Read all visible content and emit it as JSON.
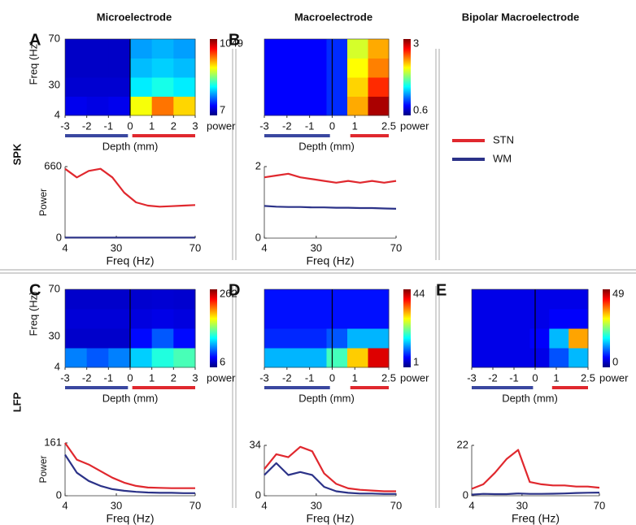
{
  "headers": [
    "Microelectrode",
    "Macroelectrode",
    "Bipolar Macroelectrode"
  ],
  "rows": [
    "SPK",
    "LFP"
  ],
  "legend": [
    {
      "name": "STN",
      "color": "#e0282e"
    },
    {
      "name": "WM",
      "color": "#2b3288"
    }
  ],
  "chart_data": [
    {
      "type": "heatmap",
      "panel": "A",
      "ylabel": "Freq (Hz)",
      "xlabel": "Depth (mm)",
      "colorbar_label": "power",
      "xlim": [
        -3,
        3
      ],
      "xticks": [
        -3,
        -2,
        -1,
        0,
        1,
        2,
        3
      ],
      "ylim": [
        4,
        70
      ],
      "yticks": [
        4,
        30,
        70
      ],
      "zlim": [
        7,
        1049
      ],
      "zticks": [
        7,
        1049
      ],
      "boundary": 0,
      "depth_bars": [
        {
          "range": [
            -3,
            -0.1
          ],
          "color": "#3a47a0"
        },
        {
          "range": [
            0.1,
            3
          ],
          "color": "#e0282e"
        }
      ],
      "z": [
        [
          120,
          110,
          120,
          650,
          800,
          700
        ],
        [
          90,
          90,
          90,
          380,
          420,
          380
        ],
        [
          80,
          80,
          80,
          330,
          350,
          330
        ],
        [
          80,
          80,
          80,
          300,
          320,
          300
        ]
      ]
    },
    {
      "type": "line",
      "xlabel": "Freq (Hz)",
      "ylabel": "Power",
      "x": [
        4,
        10,
        16,
        22,
        28,
        34,
        40,
        46,
        52,
        58,
        64,
        70
      ],
      "xlim": [
        4,
        70
      ],
      "xticks": [
        4,
        30,
        70
      ],
      "ylim": [
        0,
        660
      ],
      "yticks": [
        0,
        660
      ],
      "series": [
        {
          "color": "#e0282e",
          "values": [
            640,
            560,
            620,
            640,
            560,
            420,
            330,
            300,
            290,
            295,
            300,
            305
          ]
        },
        {
          "color": "#2b3288",
          "values": [
            5,
            5,
            5,
            5,
            5,
            5,
            5,
            5,
            5,
            5,
            5,
            5
          ]
        }
      ]
    },
    {
      "type": "heatmap",
      "panel": "B",
      "xlabel": "Depth (mm)",
      "colorbar_label": "power",
      "xlim": [
        -3,
        2.5
      ],
      "xticks": [
        -3,
        -2,
        -1,
        0,
        1,
        2.5
      ],
      "ylim": [
        4,
        70
      ],
      "yticks": [],
      "zlim": [
        0.6,
        3
      ],
      "zticks": [
        0.6,
        3
      ],
      "boundary": 0,
      "depth_bars": [
        {
          "range": [
            -3,
            -0.1
          ],
          "color": "#3a47a0"
        },
        {
          "range": [
            0.8,
            2.5
          ],
          "color": "#e0282e"
        }
      ],
      "z": [
        [
          0.9,
          0.9,
          0.9,
          1.0,
          2.3,
          2.9
        ],
        [
          0.9,
          0.9,
          0.9,
          1.0,
          2.2,
          2.6
        ],
        [
          0.9,
          0.9,
          0.9,
          1.0,
          2.1,
          2.4
        ],
        [
          0.9,
          0.9,
          0.9,
          1.0,
          2.0,
          2.3
        ]
      ]
    },
    {
      "type": "line",
      "xlabel": "Freq (Hz)",
      "x": [
        4,
        10,
        16,
        22,
        28,
        34,
        40,
        46,
        52,
        58,
        64,
        70
      ],
      "xlim": [
        4,
        70
      ],
      "xticks": [
        4,
        30,
        70
      ],
      "ylim": [
        0,
        2
      ],
      "yticks": [
        0,
        2
      ],
      "series": [
        {
          "color": "#e0282e",
          "values": [
            1.7,
            1.75,
            1.8,
            1.7,
            1.65,
            1.6,
            1.55,
            1.6,
            1.55,
            1.6,
            1.55,
            1.6
          ]
        },
        {
          "color": "#2b3288",
          "values": [
            0.9,
            0.88,
            0.87,
            0.87,
            0.86,
            0.86,
            0.85,
            0.85,
            0.84,
            0.84,
            0.83,
            0.82
          ]
        }
      ]
    },
    {
      "type": "heatmap",
      "panel": "C",
      "ylabel": "Freq (Hz)",
      "xlabel": "Depth (mm)",
      "colorbar_label": "power",
      "xlim": [
        -3,
        3
      ],
      "xticks": [
        -3,
        -2,
        -1,
        0,
        1,
        2,
        3
      ],
      "ylim": [
        4,
        70
      ],
      "yticks": [
        4,
        30,
        70
      ],
      "zlim": [
        6,
        262
      ],
      "zticks": [
        6,
        262
      ],
      "boundary": 0,
      "depth_bars": [
        {
          "range": [
            -3,
            -0.1
          ],
          "color": "#3a47a0"
        },
        {
          "range": [
            0.1,
            3
          ],
          "color": "#e0282e"
        }
      ],
      "z": [
        [
          70,
          60,
          70,
          90,
          110,
          120
        ],
        [
          25,
          25,
          25,
          40,
          60,
          40
        ],
        [
          28,
          28,
          28,
          30,
          32,
          30
        ],
        [
          25,
          25,
          25,
          26,
          27,
          26
        ]
      ]
    },
    {
      "type": "line",
      "xlabel": "Freq (Hz)",
      "ylabel": "Power",
      "x": [
        4,
        10,
        16,
        22,
        28,
        34,
        40,
        46,
        52,
        58,
        64,
        70
      ],
      "xlim": [
        4,
        70
      ],
      "xticks": [
        4,
        30,
        70
      ],
      "ylim": [
        0,
        161
      ],
      "yticks": [
        0,
        161
      ],
      "series": [
        {
          "color": "#e0282e",
          "values": [
            161,
            110,
            95,
            75,
            55,
            40,
            30,
            25,
            24,
            23,
            23,
            23
          ]
        },
        {
          "color": "#2b3288",
          "values": [
            125,
            70,
            45,
            30,
            20,
            15,
            12,
            10,
            9,
            9,
            8,
            8
          ]
        }
      ]
    },
    {
      "type": "heatmap",
      "panel": "D",
      "xlabel": "Depth (mm)",
      "colorbar_label": "power",
      "xlim": [
        -3,
        2.5
      ],
      "xticks": [
        -3,
        -2,
        -1,
        0,
        1,
        2.5
      ],
      "ylim": [
        4,
        70
      ],
      "yticks": [],
      "zlim": [
        1,
        44
      ],
      "zticks": [
        1,
        44
      ],
      "boundary": 0,
      "depth_bars": [
        {
          "range": [
            -3,
            -0.1
          ],
          "color": "#3a47a0"
        },
        {
          "range": [
            0.8,
            2.5
          ],
          "color": "#e0282e"
        }
      ],
      "z": [
        [
          14,
          14,
          14,
          20,
          30,
          40
        ],
        [
          8,
          8,
          8,
          10,
          14,
          14
        ],
        [
          7,
          7,
          7,
          7,
          7,
          7
        ],
        [
          7,
          7,
          7,
          7,
          7,
          7
        ]
      ]
    },
    {
      "type": "line",
      "xlabel": "Freq (Hz)",
      "x": [
        4,
        10,
        16,
        22,
        28,
        34,
        40,
        46,
        52,
        58,
        64,
        70
      ],
      "xlim": [
        4,
        70
      ],
      "xticks": [
        4,
        30,
        70
      ],
      "ylim": [
        0,
        34
      ],
      "yticks": [
        0,
        34
      ],
      "series": [
        {
          "color": "#e0282e",
          "values": [
            18,
            28,
            26,
            33,
            30,
            15,
            8,
            5,
            4,
            3.5,
            3,
            3
          ]
        },
        {
          "color": "#2b3288",
          "values": [
            14,
            22,
            14,
            16,
            14,
            6,
            3,
            2,
            1.5,
            1.5,
            1.2,
            1.2
          ]
        }
      ]
    },
    {
      "type": "heatmap",
      "panel": "E",
      "xlabel": "Depth (mm)",
      "colorbar_label": "power",
      "xlim": [
        -3,
        2.5
      ],
      "xticks": [
        -3,
        -2,
        -1,
        0,
        1,
        2.5
      ],
      "ylim": [
        4,
        70
      ],
      "yticks": [],
      "zlim": [
        0,
        49
      ],
      "zticks": [
        0,
        49
      ],
      "boundary": 0,
      "depth_bars": [
        {
          "range": [
            -3,
            -0.1
          ],
          "color": "#3a47a0"
        },
        {
          "range": [
            0.8,
            2.5
          ],
          "color": "#e0282e"
        }
      ],
      "z": [
        [
          5,
          5,
          5,
          5,
          10,
          15
        ],
        [
          5,
          5,
          5,
          6,
          15,
          35
        ],
        [
          5,
          5,
          5,
          5,
          6,
          6
        ],
        [
          5,
          5,
          5,
          5,
          5,
          5
        ]
      ]
    },
    {
      "type": "line",
      "xlabel": "Freq (Hz)",
      "x": [
        4,
        10,
        16,
        22,
        28,
        34,
        40,
        46,
        52,
        58,
        64,
        70
      ],
      "xlim": [
        4,
        70
      ],
      "xticks": [
        4,
        30,
        70
      ],
      "ylim": [
        0,
        22
      ],
      "yticks": [
        0,
        22
      ],
      "series": [
        {
          "color": "#e0282e",
          "values": [
            3,
            5,
            10,
            16,
            20,
            6,
            5,
            4.5,
            4.5,
            4,
            4,
            3.5
          ]
        },
        {
          "color": "#2b3288",
          "values": [
            0.5,
            0.8,
            0.7,
            0.7,
            1,
            0.8,
            0.8,
            0.9,
            1,
            1.2,
            1.3,
            1.4
          ]
        }
      ]
    }
  ]
}
